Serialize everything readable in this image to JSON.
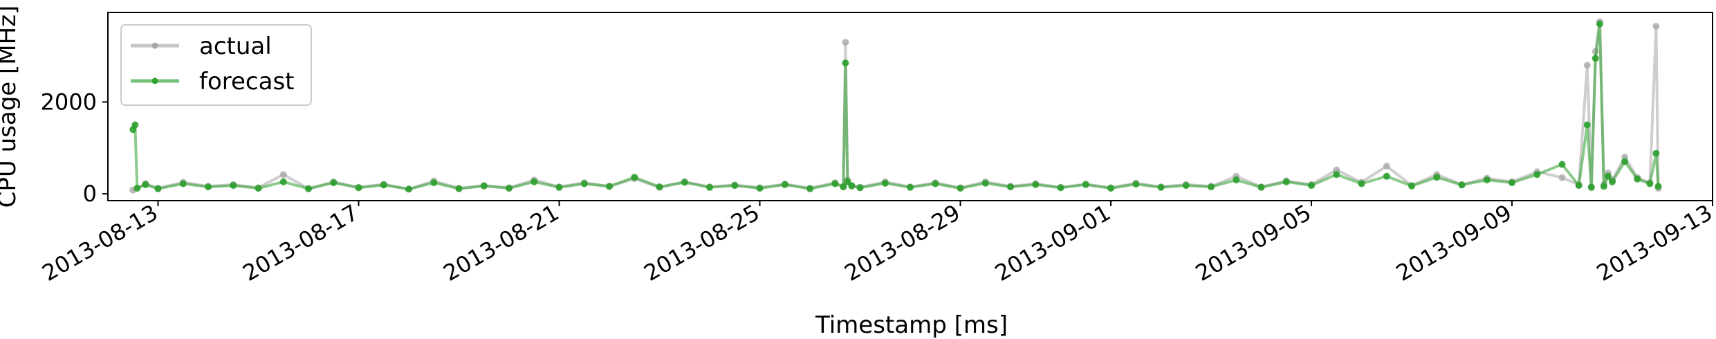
{
  "chart_data": {
    "type": "line",
    "title": "",
    "xlabel": "Timestamp [ms]",
    "ylabel": "CPU usage [MHz]",
    "x_type": "date",
    "xlim": [
      "2013-08-12 00:00",
      "2013-09-13 00:00"
    ],
    "ylim": [
      -150,
      3950
    ],
    "yticks": [
      0,
      2000
    ],
    "ytick_labels": [
      "0",
      "2000"
    ],
    "xticks": [
      "2013-08-13",
      "2013-08-17",
      "2013-08-21",
      "2013-08-25",
      "2013-08-29",
      "2013-09-01",
      "2013-09-05",
      "2013-09-09",
      "2013-09-13"
    ],
    "xtick_labels": [
      "2013-08-13",
      "2013-08-17",
      "2013-08-21",
      "2013-08-25",
      "2013-08-29",
      "2013-09-01",
      "2013-09-05",
      "2013-09-09",
      "2013-09-13"
    ],
    "grid": false,
    "legend_position": "top-left",
    "legend": [
      "actual",
      "forecast"
    ],
    "series": [
      {
        "name": "actual",
        "color": "#a6a6a6",
        "x": [
          "2013-08-12 12:00",
          "2013-08-12 18:00",
          "2013-08-13 00:00",
          "2013-08-13 12:00",
          "2013-08-14 00:00",
          "2013-08-14 12:00",
          "2013-08-15 00:00",
          "2013-08-15 12:00",
          "2013-08-16 00:00",
          "2013-08-16 12:00",
          "2013-08-17 00:00",
          "2013-08-17 12:00",
          "2013-08-18 00:00",
          "2013-08-18 12:00",
          "2013-08-19 00:00",
          "2013-08-19 12:00",
          "2013-08-20 00:00",
          "2013-08-20 12:00",
          "2013-08-21 00:00",
          "2013-08-21 12:00",
          "2013-08-22 00:00",
          "2013-08-22 12:00",
          "2013-08-23 00:00",
          "2013-08-23 12:00",
          "2013-08-24 00:00",
          "2013-08-24 12:00",
          "2013-08-25 00:00",
          "2013-08-25 12:00",
          "2013-08-26 00:00",
          "2013-08-26 12:00",
          "2013-08-26 16:00",
          "2013-08-26 17:00",
          "2013-08-26 18:00",
          "2013-08-26 20:00",
          "2013-08-27 00:00",
          "2013-08-27 12:00",
          "2013-08-28 00:00",
          "2013-08-28 12:00",
          "2013-08-29 00:00",
          "2013-08-29 12:00",
          "2013-08-30 00:00",
          "2013-08-30 12:00",
          "2013-08-31 00:00",
          "2013-08-31 12:00",
          "2013-09-01 00:00",
          "2013-09-01 12:00",
          "2013-09-02 00:00",
          "2013-09-02 12:00",
          "2013-09-03 00:00",
          "2013-09-03 12:00",
          "2013-09-04 00:00",
          "2013-09-04 12:00",
          "2013-09-05 00:00",
          "2013-09-05 12:00",
          "2013-09-06 00:00",
          "2013-09-06 12:00",
          "2013-09-07 00:00",
          "2013-09-07 12:00",
          "2013-09-08 00:00",
          "2013-09-08 12:00",
          "2013-09-09 00:00",
          "2013-09-09 12:00",
          "2013-09-10 00:00",
          "2013-09-10 08:00",
          "2013-09-10 12:00",
          "2013-09-10 14:00",
          "2013-09-10 16:00",
          "2013-09-10 18:00",
          "2013-09-10 20:00",
          "2013-09-10 22:00",
          "2013-09-11 00:00",
          "2013-09-11 06:00",
          "2013-09-11 12:00",
          "2013-09-11 18:00",
          "2013-09-11 21:00",
          "2013-09-11 22:00"
        ],
        "y": [
          80,
          220,
          120,
          250,
          160,
          200,
          130,
          420,
          110,
          260,
          140,
          210,
          100,
          280,
          120,
          180,
          130,
          300,
          150,
          240,
          160,
          330,
          140,
          260,
          150,
          190,
          130,
          210,
          120,
          240,
          160,
          3300,
          300,
          180,
          140,
          260,
          150,
          240,
          130,
          260,
          160,
          220,
          140,
          210,
          130,
          230,
          150,
          200,
          160,
          380,
          150,
          280,
          200,
          520,
          250,
          600,
          180,
          420,
          200,
          340,
          260,
          480,
          350,
          200,
          2800,
          150,
          3100,
          3750,
          200,
          450,
          300,
          800,
          350,
          240,
          3650,
          120
        ]
      },
      {
        "name": "forecast",
        "color": "#2ca02c",
        "x": [
          "2013-08-12 12:00",
          "2013-08-12 13:00",
          "2013-08-12 14:00",
          "2013-08-12 18:00",
          "2013-08-13 00:00",
          "2013-08-13 12:00",
          "2013-08-14 00:00",
          "2013-08-14 12:00",
          "2013-08-15 00:00",
          "2013-08-15 12:00",
          "2013-08-16 00:00",
          "2013-08-16 12:00",
          "2013-08-17 00:00",
          "2013-08-17 12:00",
          "2013-08-18 00:00",
          "2013-08-18 12:00",
          "2013-08-19 00:00",
          "2013-08-19 12:00",
          "2013-08-20 00:00",
          "2013-08-20 12:00",
          "2013-08-21 00:00",
          "2013-08-21 12:00",
          "2013-08-22 00:00",
          "2013-08-22 12:00",
          "2013-08-23 00:00",
          "2013-08-23 12:00",
          "2013-08-24 00:00",
          "2013-08-24 12:00",
          "2013-08-25 00:00",
          "2013-08-25 12:00",
          "2013-08-26 00:00",
          "2013-08-26 12:00",
          "2013-08-26 16:00",
          "2013-08-26 17:00",
          "2013-08-26 18:00",
          "2013-08-26 20:00",
          "2013-08-27 00:00",
          "2013-08-27 12:00",
          "2013-08-28 00:00",
          "2013-08-28 12:00",
          "2013-08-29 00:00",
          "2013-08-29 12:00",
          "2013-08-30 00:00",
          "2013-08-30 12:00",
          "2013-08-31 00:00",
          "2013-08-31 12:00",
          "2013-09-01 00:00",
          "2013-09-01 12:00",
          "2013-09-02 00:00",
          "2013-09-02 12:00",
          "2013-09-03 00:00",
          "2013-09-03 12:00",
          "2013-09-04 00:00",
          "2013-09-04 12:00",
          "2013-09-05 00:00",
          "2013-09-05 12:00",
          "2013-09-06 00:00",
          "2013-09-06 12:00",
          "2013-09-07 00:00",
          "2013-09-07 12:00",
          "2013-09-08 00:00",
          "2013-09-08 12:00",
          "2013-09-09 00:00",
          "2013-09-09 12:00",
          "2013-09-10 00:00",
          "2013-09-10 08:00",
          "2013-09-10 12:00",
          "2013-09-10 14:00",
          "2013-09-10 16:00",
          "2013-09-10 18:00",
          "2013-09-10 20:00",
          "2013-09-10 22:00",
          "2013-09-11 00:00",
          "2013-09-11 06:00",
          "2013-09-11 12:00",
          "2013-09-11 18:00",
          "2013-09-11 21:00",
          "2013-09-11 22:00"
        ],
        "y": [
          1400,
          1500,
          120,
          200,
          110,
          220,
          150,
          180,
          120,
          260,
          110,
          240,
          130,
          190,
          100,
          240,
          110,
          170,
          120,
          260,
          140,
          220,
          160,
          360,
          150,
          250,
          140,
          180,
          120,
          200,
          110,
          220,
          150,
          2850,
          260,
          170,
          130,
          230,
          140,
          220,
          120,
          230,
          150,
          200,
          130,
          200,
          120,
          210,
          140,
          180,
          150,
          300,
          140,
          260,
          180,
          420,
          220,
          380,
          170,
          360,
          190,
          300,
          240,
          420,
          640,
          180,
          1500,
          140,
          2950,
          3700,
          160,
          380,
          260,
          700,
          320,
          220,
          880,
          160
        ]
      }
    ]
  }
}
